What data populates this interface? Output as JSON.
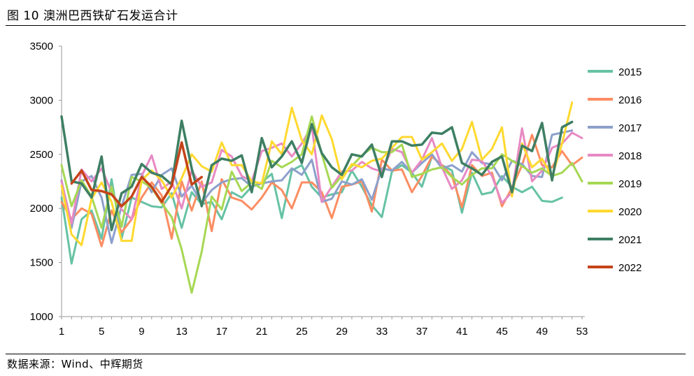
{
  "header": {
    "title": "图 10 澳洲巴西铁矿石发运合计"
  },
  "footer": {
    "source": "数据来源：Wind、中辉期货"
  },
  "chart_data": {
    "type": "line",
    "ylim": [
      1000,
      3500
    ],
    "y_ticks": [
      1000,
      1500,
      2000,
      2500,
      3000,
      3500
    ],
    "xlim": [
      1,
      53
    ],
    "x_ticks": [
      1,
      5,
      9,
      13,
      17,
      21,
      25,
      29,
      33,
      37,
      41,
      45,
      49,
      53
    ],
    "legend": "right",
    "series": [
      {
        "name": "2015",
        "color": "#66c2a5",
        "values": [
          2100,
          1490,
          1900,
          1980,
          1720,
          2270,
          1720,
          2100,
          2060,
          2020,
          2010,
          2140,
          1820,
          2150,
          2040,
          2060,
          1900,
          2150,
          2100,
          2200,
          2240,
          2320,
          1910,
          2350,
          2400,
          2200,
          2100,
          2130,
          2150,
          2350,
          2200,
          2030,
          1920,
          2340,
          2400,
          2330,
          2200,
          2480,
          2400,
          2350,
          1960,
          2330,
          2130,
          2150,
          2300,
          2200,
          2150,
          2200,
          2070,
          2060,
          2100,
          null,
          null
        ]
      },
      {
        "name": "2016",
        "color": "#fc8d62",
        "values": [
          2060,
          1900,
          2000,
          1950,
          1650,
          1980,
          1780,
          1900,
          2100,
          2240,
          2120,
          1720,
          2250,
          1980,
          2250,
          1790,
          2270,
          2100,
          2070,
          1990,
          2100,
          2240,
          2170,
          2000,
          2240,
          2240,
          2150,
          1910,
          2200,
          2220,
          2250,
          1970,
          2450,
          2350,
          2360,
          2150,
          2300,
          2480,
          2400,
          2300,
          2010,
          2400,
          2300,
          2330,
          2020,
          2190,
          2400,
          2680,
          2400,
          2380,
          2530,
          2400,
          2470
        ]
      },
      {
        "name": "2017",
        "color": "#8da0cb",
        "values": [
          2260,
          1820,
          2250,
          2300,
          2100,
          1680,
          2020,
          2310,
          2320,
          2150,
          2310,
          2370,
          2110,
          2210,
          2050,
          2170,
          2240,
          2270,
          2280,
          2200,
          2230,
          2250,
          2260,
          2370,
          2310,
          2450,
          2060,
          2090,
          2250,
          2220,
          2270,
          2080,
          2370,
          2350,
          2430,
          2330,
          2420,
          2500,
          2370,
          2400,
          2340,
          2520,
          2420,
          2410,
          2260,
          2440,
          2410,
          2300,
          2290,
          2680,
          2700,
          2720,
          null
        ]
      },
      {
        "name": "2018",
        "color": "#e78ac3",
        "values": [
          2250,
          1860,
          2360,
          2250,
          2370,
          2150,
          1990,
          1900,
          2300,
          2490,
          2180,
          2250,
          2000,
          2350,
          2200,
          2240,
          2540,
          2480,
          2300,
          2250,
          2530,
          2560,
          2600,
          2480,
          2600,
          2760,
          2060,
          2200,
          2340,
          2350,
          2430,
          2370,
          2340,
          2550,
          2520,
          2330,
          2450,
          2650,
          2380,
          2180,
          2260,
          2450,
          2440,
          2300,
          2050,
          2150,
          2740,
          2250,
          2350,
          2560,
          2600,
          2700,
          2650
        ]
      },
      {
        "name": "2019",
        "color": "#a6d854",
        "values": [
          2400,
          2020,
          2260,
          2110,
          1820,
          2200,
          1830,
          2290,
          2250,
          2190,
          2050,
          1920,
          1620,
          1220,
          1600,
          2110,
          1990,
          2340,
          2160,
          2240,
          2180,
          2440,
          2380,
          2430,
          2500,
          2850,
          2500,
          2190,
          2300,
          2390,
          2490,
          2560,
          2520,
          2520,
          2590,
          2290,
          2320,
          2360,
          2380,
          2290,
          2220,
          2310,
          2370,
          2370,
          2500,
          2440,
          2390,
          2330,
          2370,
          2300,
          2330,
          2420,
          2250
        ]
      },
      {
        "name": "2020",
        "color": "#ffd92f",
        "values": [
          2210,
          1760,
          1660,
          2090,
          2240,
          2060,
          1700,
          1700,
          2260,
          2350,
          2260,
          2100,
          2280,
          2500,
          2390,
          2340,
          2610,
          2400,
          2400,
          2250,
          2230,
          2620,
          2500,
          2930,
          2630,
          2500,
          2860,
          2640,
          2270,
          2410,
          2380,
          2440,
          2460,
          2560,
          2660,
          2660,
          2450,
          2520,
          2600,
          2440,
          2550,
          2800,
          2450,
          2550,
          2750,
          2110,
          2600,
          2380,
          2460,
          2290,
          2600,
          2980,
          null
        ]
      },
      {
        "name": "2021",
        "color": "#3e7f63",
        "values": [
          2850,
          2250,
          2230,
          2100,
          2480,
          1800,
          2140,
          2200,
          2410,
          2330,
          2300,
          2220,
          2810,
          2370,
          2020,
          2400,
          2460,
          2440,
          2490,
          2150,
          2650,
          2380,
          2480,
          2620,
          2420,
          2780,
          2510,
          2380,
          2310,
          2500,
          2480,
          2590,
          2290,
          2620,
          2620,
          2580,
          2590,
          2700,
          2690,
          2750,
          2420,
          2370,
          2310,
          2430,
          2480,
          2150,
          2580,
          2530,
          2790,
          2260,
          2750,
          2800,
          null
        ]
      },
      {
        "name": "2022",
        "color": "#c4441a",
        "values": [
          null,
          2230,
          2350,
          2170,
          2160,
          2130,
          2020,
          2110,
          2290,
          2200,
          2060,
          2210,
          2610,
          2220,
          2290,
          null,
          null,
          null,
          null,
          null,
          null,
          null,
          null,
          null,
          null,
          null,
          null,
          null,
          null,
          null,
          null,
          null,
          null,
          null,
          null,
          null,
          null,
          null,
          null,
          null,
          null,
          null,
          null,
          null,
          null,
          null,
          null,
          null,
          null,
          null,
          null,
          null,
          null
        ]
      }
    ]
  }
}
